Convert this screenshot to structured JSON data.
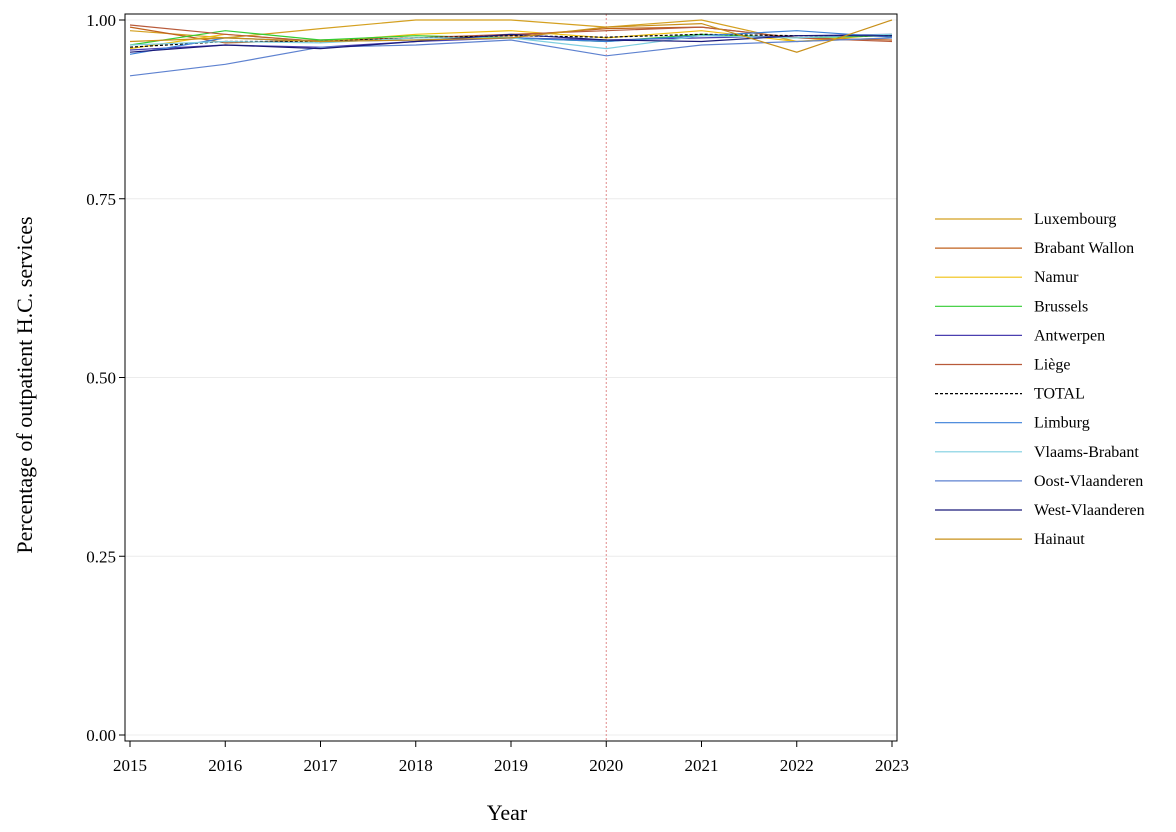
{
  "chart_data": {
    "type": "line",
    "title": "",
    "xlabel": "Year",
    "ylabel": "Percentage of outpatient H.C. services",
    "x": [
      2015,
      2016,
      2017,
      2018,
      2019,
      2020,
      2021,
      2022,
      2023
    ],
    "xlim": [
      2015,
      2023
    ],
    "ylim": [
      0,
      1
    ],
    "yticks": [
      "0.00",
      "0.25",
      "0.50",
      "0.75",
      "1.00"
    ],
    "grid": "horizontal",
    "reference_line_x": 2020,
    "legend_position": "right",
    "series": [
      {
        "name": "Luxembourg",
        "color": "#d4a020",
        "dash": false,
        "values": [
          0.985,
          0.975,
          0.988,
          1.0,
          1.0,
          0.99,
          1.0,
          0.97,
          0.975
        ]
      },
      {
        "name": "Brabant Wallon",
        "color": "#c0621e",
        "dash": false,
        "values": [
          0.99,
          0.968,
          0.972,
          0.975,
          0.978,
          0.988,
          0.99,
          0.975,
          0.972
        ]
      },
      {
        "name": "Namur",
        "color": "#f0c010",
        "dash": false,
        "values": [
          0.96,
          0.98,
          0.97,
          0.98,
          0.985,
          0.975,
          0.985,
          0.97,
          0.98
        ]
      },
      {
        "name": "Brussels",
        "color": "#33cc33",
        "dash": false,
        "values": [
          0.965,
          0.985,
          0.972,
          0.978,
          0.975,
          0.97,
          0.98,
          0.975,
          0.978
        ]
      },
      {
        "name": "Antwerpen",
        "color": "#4a3fb0",
        "dash": false,
        "values": [
          0.958,
          0.965,
          0.962,
          0.97,
          0.975,
          0.972,
          0.975,
          0.978,
          0.98
        ]
      },
      {
        "name": "Liège",
        "color": "#b85a3a",
        "dash": false,
        "values": [
          0.993,
          0.98,
          0.97,
          0.975,
          0.98,
          0.985,
          0.99,
          0.975,
          0.97
        ]
      },
      {
        "name": "TOTAL",
        "color": "#000000",
        "dash": true,
        "values": [
          0.962,
          0.97,
          0.97,
          0.975,
          0.978,
          0.976,
          0.98,
          0.978,
          0.978
        ]
      },
      {
        "name": "Limburg",
        "color": "#3a7fd8",
        "dash": false,
        "values": [
          0.952,
          0.975,
          0.97,
          0.972,
          0.975,
          0.97,
          0.978,
          0.985,
          0.976
        ]
      },
      {
        "name": "Vlaams-Brabant",
        "color": "#7fcfe0",
        "dash": false,
        "values": [
          0.965,
          0.97,
          0.968,
          0.975,
          0.975,
          0.96,
          0.978,
          0.975,
          0.98
        ]
      },
      {
        "name": "Oost-Vlaanderen",
        "color": "#5e82d0",
        "dash": false,
        "values": [
          0.922,
          0.938,
          0.962,
          0.965,
          0.972,
          0.95,
          0.965,
          0.97,
          0.975
        ]
      },
      {
        "name": "West-Vlaanderen",
        "color": "#1a1a7a",
        "dash": false,
        "values": [
          0.955,
          0.965,
          0.96,
          0.97,
          0.98,
          0.972,
          0.97,
          0.978,
          0.978
        ]
      },
      {
        "name": "Hainaut",
        "color": "#c8901a",
        "dash": false,
        "values": [
          0.97,
          0.975,
          0.97,
          0.972,
          0.975,
          0.99,
          0.995,
          0.955,
          1.0
        ]
      }
    ]
  }
}
